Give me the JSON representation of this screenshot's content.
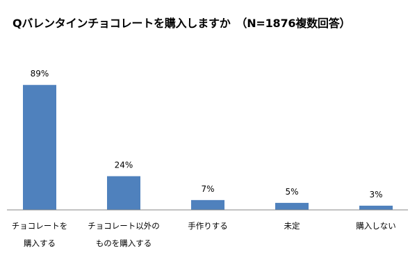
{
  "chart_data": {
    "type": "bar",
    "title": "Qバレンタインチョコレートを購入しますか　（N=1876複数回答）",
    "categories": [
      [
        "チョコレートを",
        "購入する"
      ],
      [
        "チョコレート以外の",
        "ものを購入する"
      ],
      [
        "手作りする"
      ],
      [
        "未定"
      ],
      [
        "購入しない"
      ]
    ],
    "values": [
      89,
      24,
      7,
      5,
      3
    ],
    "data_labels": [
      "89%",
      "24%",
      "7%",
      "5%",
      "3%"
    ],
    "unit": "%",
    "ylim": [
      0,
      100
    ],
    "grid": false,
    "legend": "none",
    "bar_color": "#4F81BD",
    "axis_color": "#868686"
  }
}
